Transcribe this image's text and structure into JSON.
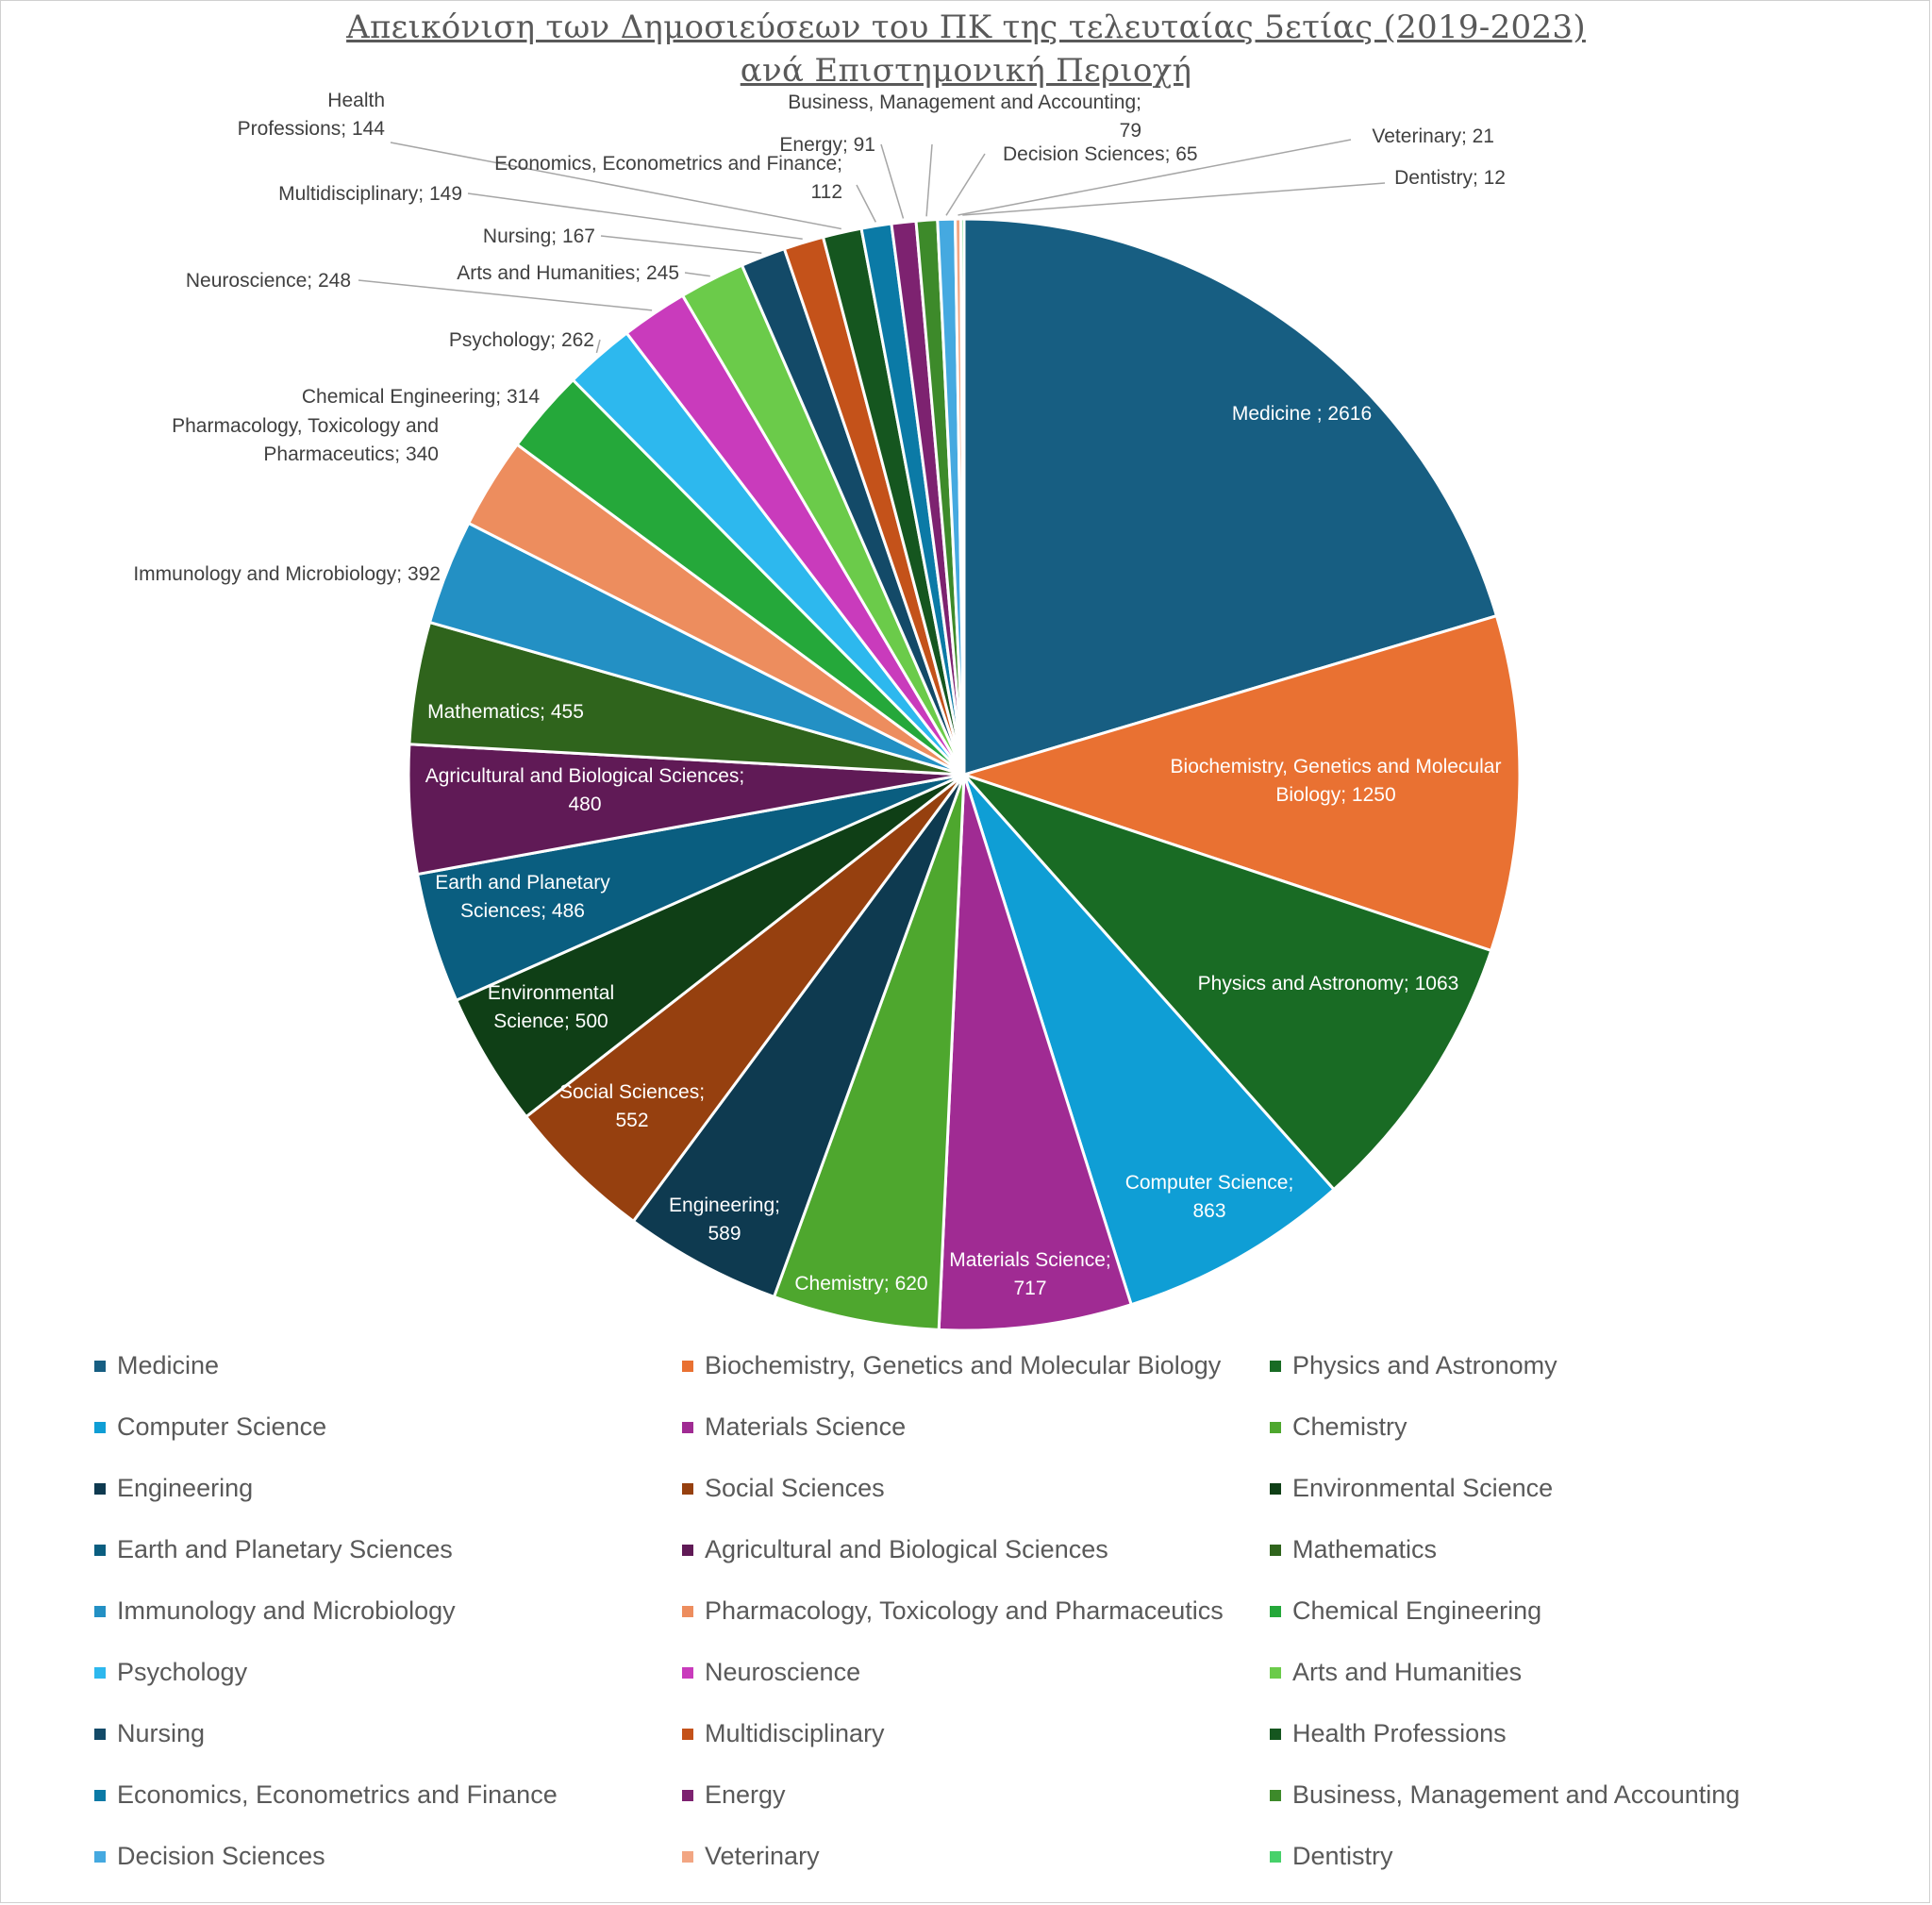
{
  "chart_data": {
    "type": "pie",
    "title": [
      "Απεικόνιση των Δημοσιεύσεων του ΠΚ της τελευταίας 5ετίας (2019-2023)",
      "ανά Επιστημονική Περιοχή"
    ],
    "legend_position": "bottom",
    "slices": [
      {
        "name": "Medicine",
        "value": 2616,
        "label": [
          "Medicine ; 2616"
        ],
        "color": "#175E82"
      },
      {
        "name": "Biochemistry, Genetics and Molecular Biology",
        "value": 1250,
        "label": [
          "Biochemistry, Genetics and Molecular",
          "Biology; 1250"
        ],
        "color": "#E97132"
      },
      {
        "name": "Physics and Astronomy",
        "value": 1063,
        "label": [
          "Physics and Astronomy; 1063"
        ],
        "color": "#196B24"
      },
      {
        "name": "Computer Science",
        "value": 863,
        "label": [
          "Computer Science;",
          "863"
        ],
        "color": "#0F9ED5"
      },
      {
        "name": "Materials Science",
        "value": 717,
        "label": [
          "Materials Science;",
          "717"
        ],
        "color": "#A02B93"
      },
      {
        "name": "Chemistry",
        "value": 620,
        "label": [
          "Chemistry; 620"
        ],
        "color": "#4EA72E"
      },
      {
        "name": "Engineering",
        "value": 589,
        "label": [
          "Engineering;",
          "589"
        ],
        "color": "#0E3A50"
      },
      {
        "name": "Social Sciences",
        "value": 552,
        "label": [
          "Social Sciences;",
          "552"
        ],
        "color": "#96400F"
      },
      {
        "name": "Environmental Science",
        "value": 500,
        "label": [
          "Environmental",
          "Science; 500"
        ],
        "color": "#0F3F16"
      },
      {
        "name": "Earth and Planetary Sciences",
        "value": 486,
        "label": [
          "Earth and Planetary",
          "Sciences; 486"
        ],
        "color": "#0A5E80"
      },
      {
        "name": "Agricultural and Biological Sciences",
        "value": 480,
        "label": [
          "Agricultural and Biological Sciences;",
          "480"
        ],
        "color": "#601A56"
      },
      {
        "name": "Mathematics",
        "value": 455,
        "label": [
          "Mathematics; 455"
        ],
        "color": "#2F641C"
      },
      {
        "name": "Immunology and Microbiology",
        "value": 392,
        "label": [
          "Immunology and Microbiology; 392"
        ],
        "color": "#2390C4"
      },
      {
        "name": "Pharmacology, Toxicology and Pharmaceutics",
        "value": 340,
        "label": [
          "Pharmacology, Toxicology and",
          "Pharmaceutics; 340"
        ],
        "color": "#ED8D5E"
      },
      {
        "name": "Chemical Engineering",
        "value": 314,
        "label": [
          "Chemical Engineering; 314"
        ],
        "color": "#25A83A"
      },
      {
        "name": "Psychology",
        "value": 262,
        "label": [
          "Psychology; 262"
        ],
        "color": "#2DB8EE"
      },
      {
        "name": "Neuroscience",
        "value": 248,
        "label": [
          "Neuroscience; 248"
        ],
        "color": "#C93BBC"
      },
      {
        "name": "Arts and Humanities",
        "value": 245,
        "label": [
          "Arts and Humanities; 245"
        ],
        "color": "#6BCB4A"
      },
      {
        "name": "Nursing",
        "value": 167,
        "label": [
          "Nursing; 167"
        ],
        "color": "#134A68"
      },
      {
        "name": "Multidisciplinary",
        "value": 149,
        "label": [
          "Multidisciplinary; 149"
        ],
        "color": "#C4521A"
      },
      {
        "name": "Health Professions",
        "value": 144,
        "label": [
          "Health",
          "Professions; 144"
        ],
        "color": "#15561F"
      },
      {
        "name": "Economics, Econometrics and Finance",
        "value": 112,
        "label": [
          "Economics, Econometrics and Finance;",
          "112"
        ],
        "color": "#0B7AA6"
      },
      {
        "name": "Energy",
        "value": 91,
        "label": [
          "Energy; 91"
        ],
        "color": "#7D2270"
      },
      {
        "name": "Business, Management and Accounting",
        "value": 79,
        "label": [
          "Business, Management and Accounting;",
          "79"
        ],
        "color": "#3D8A2A"
      },
      {
        "name": "Decision Sciences",
        "value": 65,
        "label": [
          "Decision Sciences; 65"
        ],
        "color": "#45A9E0"
      },
      {
        "name": "Veterinary",
        "value": 21,
        "label": [
          "Veterinary; 21"
        ],
        "color": "#F2A683"
      },
      {
        "name": "Dentistry",
        "value": 12,
        "label": [
          "Dentistry; 12"
        ],
        "color": "#47D16A"
      }
    ]
  }
}
